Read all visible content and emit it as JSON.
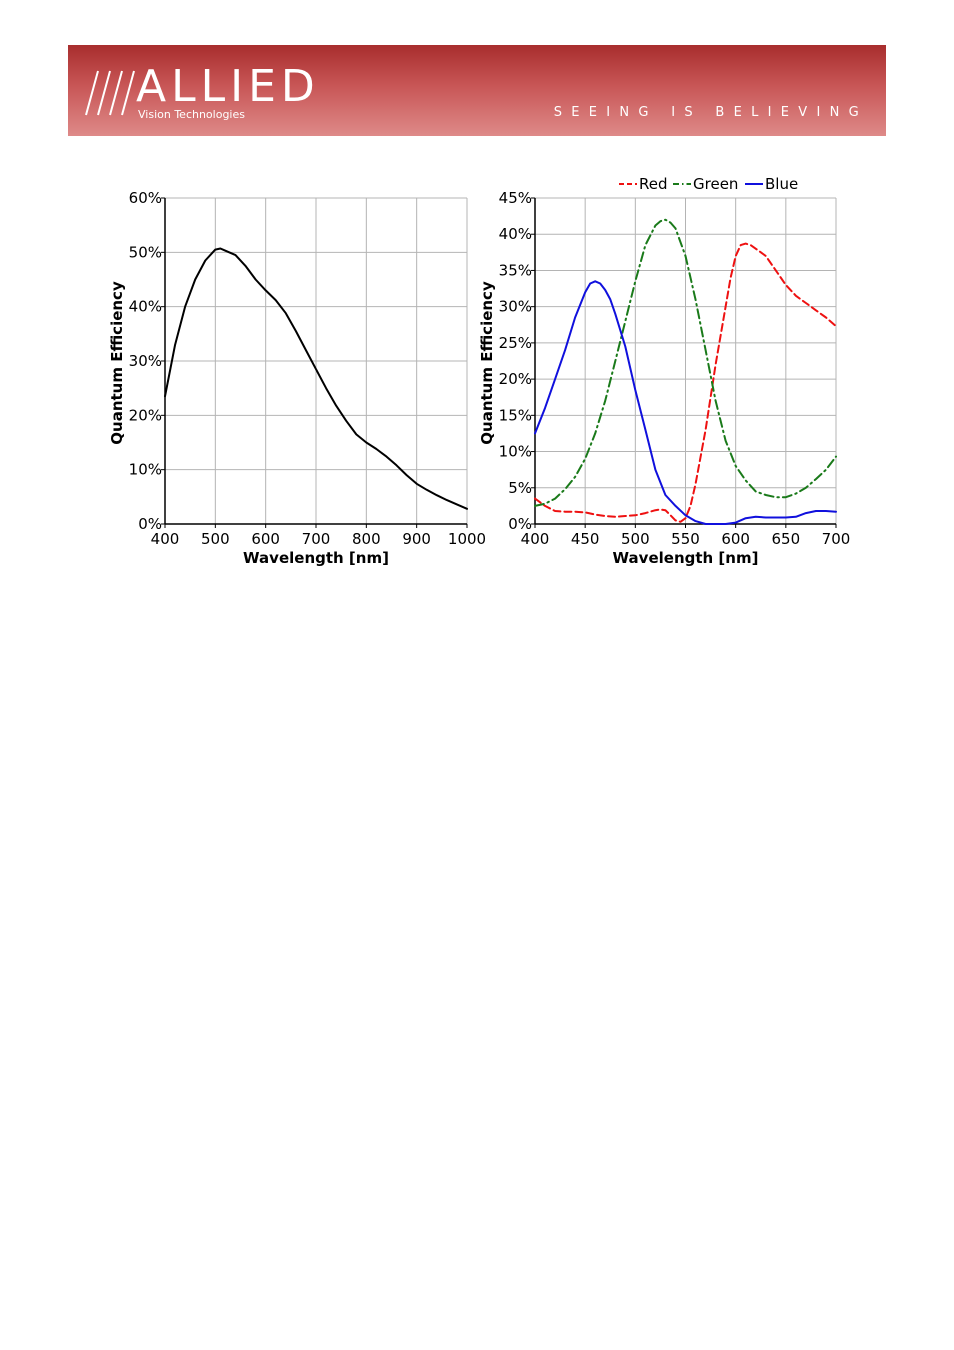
{
  "header": {
    "logo_text": "ALLIED",
    "logo_subtitle": "Vision Technologies",
    "tagline": "SEEING IS BELIEVING",
    "colors": {
      "top": "#a82d2d",
      "bottom": "#de8a88"
    }
  },
  "chart_data": [
    {
      "type": "line",
      "title": "",
      "xlabel": "Wavelength [nm]",
      "ylabel": "Quantum Efficiency",
      "xlim": [
        400,
        1000
      ],
      "ylim": [
        0,
        60
      ],
      "x_ticks": [
        "400",
        "500",
        "600",
        "700",
        "800",
        "900",
        "1000"
      ],
      "y_ticks": [
        "0%",
        "10%",
        "20%",
        "30%",
        "40%",
        "50%",
        "60%"
      ],
      "grid": true,
      "series": [
        {
          "color": "#000000",
          "style": "solid",
          "x": [
            400,
            420,
            440,
            460,
            480,
            500,
            510,
            520,
            540,
            560,
            580,
            600,
            620,
            640,
            660,
            680,
            700,
            720,
            740,
            760,
            780,
            800,
            820,
            840,
            860,
            880,
            900,
            920,
            940,
            960,
            980,
            1000
          ],
          "y": [
            23.5,
            33,
            40,
            45,
            48.5,
            50.5,
            50.7,
            50.3,
            49.5,
            47.5,
            45,
            43,
            41.2,
            38.8,
            35.5,
            32,
            28.5,
            25,
            21.8,
            19,
            16.5,
            15,
            13.8,
            12.4,
            10.8,
            9,
            7.4,
            6.3,
            5.3,
            4.4,
            3.6,
            2.8
          ]
        }
      ]
    },
    {
      "type": "line",
      "title": "",
      "xlabel": "Wavelength [nm]",
      "ylabel": "Quantum Efficiency",
      "xlim": [
        400,
        700
      ],
      "ylim": [
        0,
        45
      ],
      "x_ticks": [
        "400",
        "450",
        "500",
        "550",
        "600",
        "650",
        "700"
      ],
      "y_ticks": [
        "0%",
        "5%",
        "10%",
        "15%",
        "20%",
        "25%",
        "30%",
        "35%",
        "40%",
        "45%"
      ],
      "grid": true,
      "legend": "top",
      "series": [
        {
          "name": "Red",
          "color": "#ee1111",
          "style": "dashed",
          "x": [
            400,
            410,
            420,
            430,
            440,
            450,
            460,
            470,
            480,
            490,
            500,
            510,
            520,
            525,
            530,
            535,
            540,
            545,
            550,
            555,
            560,
            570,
            580,
            590,
            595,
            600,
            605,
            610,
            615,
            620,
            625,
            630,
            640,
            650,
            660,
            670,
            680,
            690,
            700
          ],
          "y": [
            3.5,
            2.5,
            1.8,
            1.7,
            1.7,
            1.6,
            1.3,
            1.1,
            1.0,
            1.1,
            1.2,
            1.5,
            1.9,
            2.0,
            1.9,
            1.2,
            0.5,
            0.3,
            0.8,
            2.5,
            5.5,
            13,
            22,
            30,
            34,
            37,
            38.5,
            38.7,
            38.5,
            38,
            37.5,
            37,
            35,
            33,
            31.5,
            30.5,
            29.5,
            28.5,
            27.3
          ]
        },
        {
          "name": "Green",
          "color": "#1a7a1a",
          "style": "dashdot",
          "x": [
            400,
            410,
            420,
            430,
            440,
            450,
            460,
            470,
            480,
            490,
            500,
            510,
            520,
            525,
            530,
            535,
            540,
            550,
            560,
            570,
            580,
            590,
            600,
            610,
            620,
            630,
            640,
            650,
            660,
            670,
            680,
            690,
            700
          ],
          "y": [
            2.5,
            2.8,
            3.5,
            4.8,
            6.5,
            9,
            12.5,
            17,
            22.5,
            28,
            33.5,
            38.5,
            41.2,
            41.8,
            42,
            41.6,
            40.8,
            37,
            31,
            24,
            17,
            11.5,
            8,
            6,
            4.5,
            4,
            3.7,
            3.7,
            4.2,
            5,
            6.2,
            7.5,
            9.3
          ]
        },
        {
          "name": "Blue",
          "color": "#1010dd",
          "style": "solid",
          "x": [
            400,
            410,
            420,
            430,
            440,
            450,
            455,
            460,
            465,
            470,
            475,
            480,
            490,
            500,
            510,
            520,
            530,
            540,
            550,
            560,
            570,
            580,
            590,
            600,
            610,
            620,
            630,
            640,
            650,
            660,
            670,
            680,
            690,
            700
          ],
          "y": [
            12.5,
            16,
            20,
            24,
            28.5,
            32,
            33.2,
            33.5,
            33.2,
            32.3,
            31,
            29,
            24.5,
            18.5,
            13,
            7.5,
            4,
            2.5,
            1.2,
            0.4,
            0,
            0,
            0,
            0.2,
            0.8,
            1.0,
            0.9,
            0.9,
            0.9,
            1.0,
            1.5,
            1.8,
            1.8,
            1.7
          ]
        }
      ]
    }
  ]
}
